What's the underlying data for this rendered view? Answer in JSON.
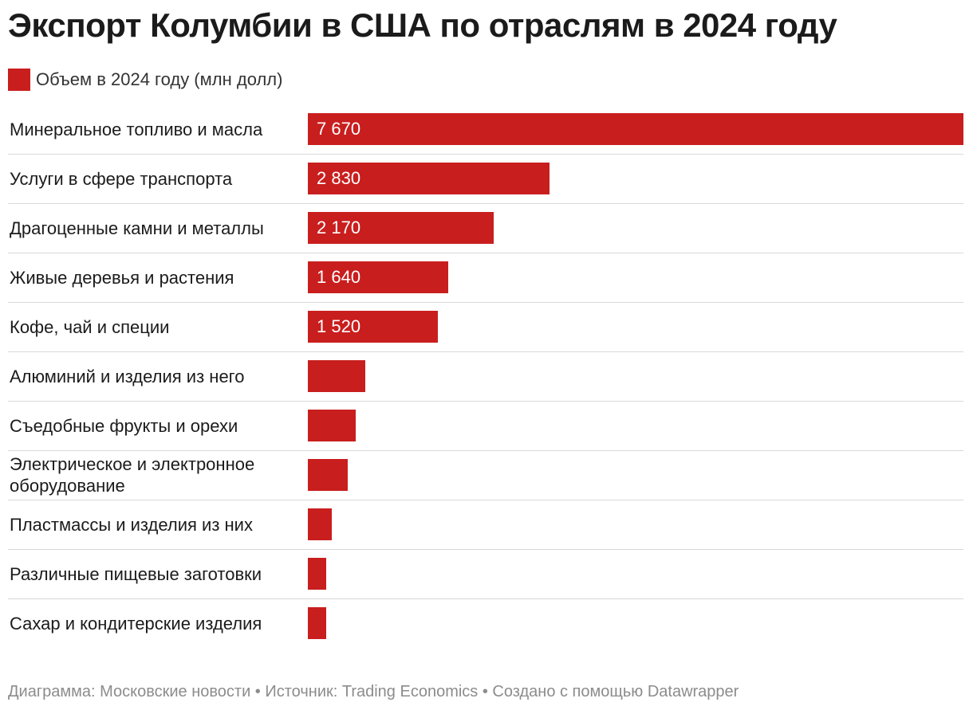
{
  "title": "Экспорт Колумбии в США по отраслям в 2024 году",
  "legend": {
    "label": "Объем в 2024 году (млн долл)",
    "color": "#c91e1e"
  },
  "colors": {
    "bar": "#c91e1e",
    "separator": "#d9d9d9",
    "footer": "#8c8c8c"
  },
  "chart_data": {
    "type": "bar",
    "orientation": "horizontal",
    "title": "Экспорт Колумбии в США по отраслям в 2024 году",
    "series": [
      {
        "name": "Объем в 2024 году (млн долл)",
        "values": [
          7670,
          2830,
          2170,
          1640,
          1520,
          670,
          560,
          470,
          280,
          210,
          210
        ]
      }
    ],
    "categories": [
      "Минеральное топливо и масла",
      "Услуги в сфере транспорта",
      "Драгоценные камни и металлы",
      "Живые деревья и растения",
      "Кофе, чай и специи",
      "Алюминий и изделия из него",
      "Съедобные фрукты и орехи",
      "Электрическое и электронное оборудование",
      "Пластмассы и изделия из них",
      "Различные пищевые заготовки",
      "Сахар и кондитерские изделия"
    ],
    "value_labels": [
      "7 670",
      "2 830",
      "2 170",
      "1 640",
      "1 520",
      "",
      "",
      "",
      "",
      "",
      ""
    ],
    "xlim": [
      0,
      7670
    ]
  },
  "footer": "Диаграмма: Московские новости • Источник: Trading Economics • Создано с помощью Datawrapper"
}
